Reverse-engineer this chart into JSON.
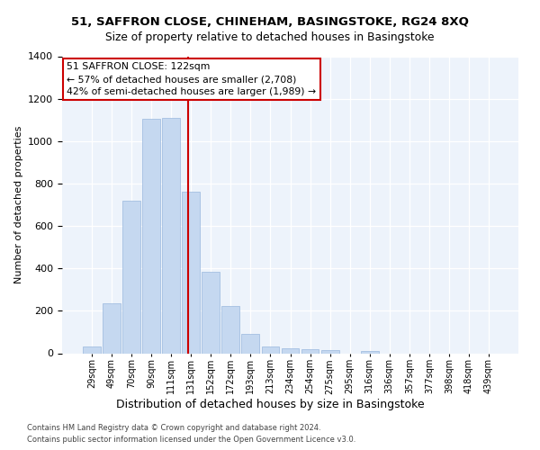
{
  "title_line1": "51, SAFFRON CLOSE, CHINEHAM, BASINGSTOKE, RG24 8XQ",
  "title_line2": "Size of property relative to detached houses in Basingstoke",
  "xlabel": "Distribution of detached houses by size in Basingstoke",
  "ylabel": "Number of detached properties",
  "bin_labels": [
    "29sqm",
    "49sqm",
    "70sqm",
    "90sqm",
    "111sqm",
    "131sqm",
    "152sqm",
    "172sqm",
    "193sqm",
    "213sqm",
    "234sqm",
    "254sqm",
    "275sqm",
    "295sqm",
    "316sqm",
    "336sqm",
    "357sqm",
    "377sqm",
    "398sqm",
    "418sqm",
    "439sqm"
  ],
  "bar_values": [
    30,
    235,
    720,
    1105,
    1110,
    760,
    383,
    223,
    90,
    30,
    25,
    20,
    15,
    0,
    12,
    0,
    0,
    0,
    0,
    0,
    0
  ],
  "bar_color": "#c5d8f0",
  "bar_edge_color": "#9ab8dd",
  "vline_color": "#cc0000",
  "vline_position": 4.85,
  "annotation_text": "51 SAFFRON CLOSE: 122sqm\n← 57% of detached houses are smaller (2,708)\n42% of semi-detached houses are larger (1,989) →",
  "ylim": [
    0,
    1400
  ],
  "yticks": [
    0,
    200,
    400,
    600,
    800,
    1000,
    1200,
    1400
  ],
  "footer_line1": "Contains HM Land Registry data © Crown copyright and database right 2024.",
  "footer_line2": "Contains public sector information licensed under the Open Government Licence v3.0.",
  "bg_color": "#edf3fb"
}
